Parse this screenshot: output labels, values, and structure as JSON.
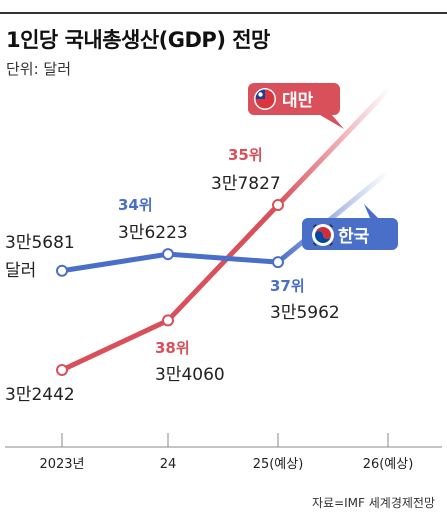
{
  "title": "1인당 국내총생산(GDP) 전망",
  "unit": "단위: 달러",
  "source": "자료=IMF 세계경제전망",
  "colors": {
    "taiwan": "#d9505a",
    "korea": "#4a6fc9",
    "axis": "#888888"
  },
  "chart_data": {
    "type": "line",
    "categories": [
      "2023년",
      "24",
      "25(예상)",
      "26(예상)"
    ],
    "series": [
      {
        "name": "대만",
        "values": [
          32442,
          34060,
          37827,
          null
        ],
        "value_labels": [
          "3만2442",
          "3만4060",
          "3만7827",
          ""
        ],
        "rank_labels": [
          "",
          "38위",
          "35위",
          ""
        ],
        "flag_icon": "taiwan-flag-icon"
      },
      {
        "name": "한국",
        "values": [
          35681,
          36223,
          35962,
          null
        ],
        "value_labels": [
          "3만5681",
          "3만6223",
          "3만5962",
          ""
        ],
        "rank_labels": [
          "",
          "34위",
          "37위",
          ""
        ],
        "flag_icon": "korea-flag-icon"
      }
    ],
    "first_label_suffix": "달러",
    "xlabel": "",
    "ylabel": "",
    "legend": "inline labels at line ends",
    "grid": false
  }
}
